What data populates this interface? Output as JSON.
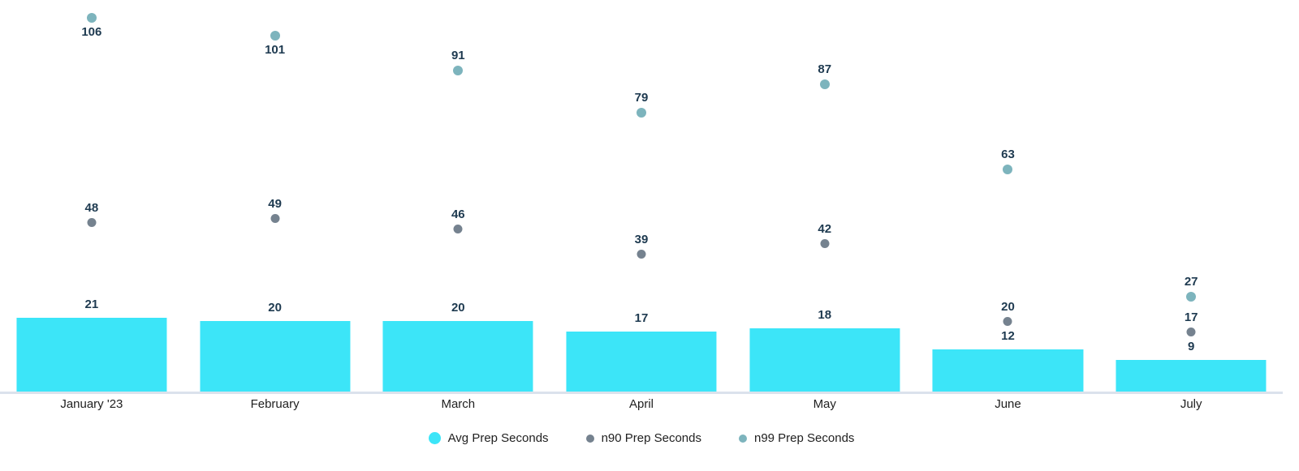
{
  "chart_data": {
    "type": "bar",
    "categories": [
      "January '23",
      "February",
      "March",
      "April",
      "May",
      "June",
      "July"
    ],
    "series": [
      {
        "name": "Avg Prep Seconds",
        "type": "bar",
        "color": "#3ce5f8",
        "legend_size": 15,
        "values": [
          21,
          20,
          20,
          17,
          18,
          12,
          9
        ]
      },
      {
        "name": "n90 Prep Seconds",
        "type": "point",
        "color": "#75828f",
        "dot_size": 11,
        "legend_size": 10,
        "values": [
          48,
          49,
          46,
          39,
          42,
          20,
          17
        ]
      },
      {
        "name": "n99 Prep Seconds",
        "type": "point",
        "color": "#7db4bd",
        "dot_size": 12,
        "legend_size": 10,
        "values": [
          106,
          101,
          91,
          79,
          87,
          63,
          27
        ]
      }
    ],
    "ylim": [
      0,
      111
    ],
    "grid": false,
    "legend_position": "bottom",
    "title": "",
    "xlabel": "",
    "ylabel": "",
    "data_label_color": "#1e3a50",
    "axis_label_color": "#212121",
    "axis_line_color": "#dbe2ec"
  }
}
